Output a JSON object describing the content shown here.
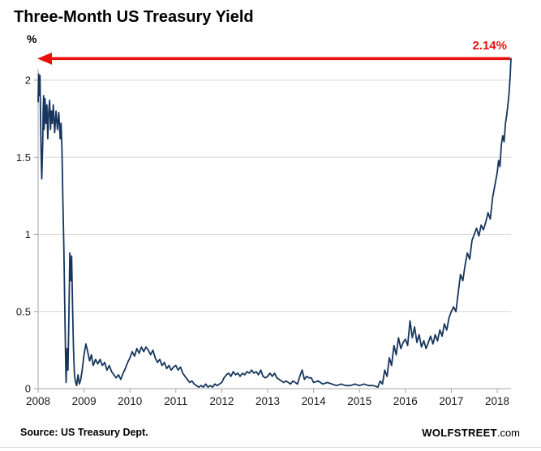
{
  "title": "Three-Month US Treasury Yield",
  "annotation": {
    "label": "2.14%",
    "value": 2.14
  },
  "footer": {
    "source": "Source: US Treasury Dept.",
    "brand_bold": "WOLFSTREET",
    "brand_suffix": ".com"
  },
  "colors": {
    "line": "#17365d",
    "accent_red": "#e8100e",
    "grid": "#d9d9d9",
    "axis": "#a6a6a6",
    "tick_text": "#1a1a1a"
  },
  "chart_data": {
    "type": "line",
    "title": "Three-Month US Treasury Yield",
    "xlabel": "",
    "ylabel": "%",
    "xlim": [
      2008,
      2018.3
    ],
    "ylim": [
      0,
      2.2
    ],
    "x_ticks": [
      2008,
      2009,
      2010,
      2011,
      2012,
      2013,
      2014,
      2015,
      2016,
      2017,
      2018
    ],
    "y_ticks": [
      0,
      0.5,
      1,
      1.5,
      2
    ],
    "grid": "horizontal",
    "legend": "none",
    "series": [
      {
        "name": "Three-Month US Treasury Yield",
        "points": [
          [
            2008.0,
            1.86
          ],
          [
            2008.01,
            2.04
          ],
          [
            2008.02,
            1.9
          ],
          [
            2008.03,
            1.97
          ],
          [
            2008.04,
            2.03
          ],
          [
            2008.05,
            1.83
          ],
          [
            2008.06,
            1.62
          ],
          [
            2008.07,
            1.45
          ],
          [
            2008.08,
            1.36
          ],
          [
            2008.1,
            1.6
          ],
          [
            2008.11,
            1.8
          ],
          [
            2008.12,
            1.9
          ],
          [
            2008.13,
            1.68
          ],
          [
            2008.15,
            1.88
          ],
          [
            2008.17,
            1.72
          ],
          [
            2008.19,
            1.84
          ],
          [
            2008.21,
            1.62
          ],
          [
            2008.23,
            1.79
          ],
          [
            2008.25,
            1.87
          ],
          [
            2008.27,
            1.68
          ],
          [
            2008.29,
            1.8
          ],
          [
            2008.31,
            1.72
          ],
          [
            2008.33,
            1.84
          ],
          [
            2008.36,
            1.66
          ],
          [
            2008.39,
            1.8
          ],
          [
            2008.42,
            1.68
          ],
          [
            2008.45,
            1.79
          ],
          [
            2008.48,
            1.62
          ],
          [
            2008.5,
            1.72
          ],
          [
            2008.52,
            1.55
          ],
          [
            2008.54,
            1.2
          ],
          [
            2008.56,
            0.92
          ],
          [
            2008.58,
            0.55
          ],
          [
            2008.6,
            0.16
          ],
          [
            2008.61,
            0.04
          ],
          [
            2008.63,
            0.26
          ],
          [
            2008.65,
            0.12
          ],
          [
            2008.67,
            0.45
          ],
          [
            2008.69,
            0.88
          ],
          [
            2008.71,
            0.7
          ],
          [
            2008.73,
            0.86
          ],
          [
            2008.75,
            0.52
          ],
          [
            2008.77,
            0.26
          ],
          [
            2008.79,
            0.1
          ],
          [
            2008.81,
            0.05
          ],
          [
            2008.84,
            0.02
          ],
          [
            2008.87,
            0.09
          ],
          [
            2008.9,
            0.03
          ],
          [
            2008.93,
            0.06
          ],
          [
            2008.96,
            0.12
          ],
          [
            2009.0,
            0.22
          ],
          [
            2009.04,
            0.29
          ],
          [
            2009.08,
            0.24
          ],
          [
            2009.12,
            0.18
          ],
          [
            2009.16,
            0.22
          ],
          [
            2009.2,
            0.15
          ],
          [
            2009.25,
            0.19
          ],
          [
            2009.3,
            0.16
          ],
          [
            2009.35,
            0.19
          ],
          [
            2009.4,
            0.15
          ],
          [
            2009.45,
            0.17
          ],
          [
            2009.5,
            0.12
          ],
          [
            2009.55,
            0.15
          ],
          [
            2009.6,
            0.11
          ],
          [
            2009.65,
            0.09
          ],
          [
            2009.7,
            0.07
          ],
          [
            2009.75,
            0.09
          ],
          [
            2009.8,
            0.06
          ],
          [
            2009.85,
            0.1
          ],
          [
            2009.9,
            0.13
          ],
          [
            2009.95,
            0.17
          ],
          [
            2010.0,
            0.2
          ],
          [
            2010.05,
            0.24
          ],
          [
            2010.1,
            0.21
          ],
          [
            2010.15,
            0.26
          ],
          [
            2010.2,
            0.23
          ],
          [
            2010.25,
            0.27
          ],
          [
            2010.3,
            0.24
          ],
          [
            2010.35,
            0.27
          ],
          [
            2010.4,
            0.25
          ],
          [
            2010.45,
            0.22
          ],
          [
            2010.5,
            0.25
          ],
          [
            2010.55,
            0.2
          ],
          [
            2010.6,
            0.17
          ],
          [
            2010.65,
            0.19
          ],
          [
            2010.7,
            0.15
          ],
          [
            2010.75,
            0.17
          ],
          [
            2010.8,
            0.13
          ],
          [
            2010.85,
            0.15
          ],
          [
            2010.9,
            0.12
          ],
          [
            2010.95,
            0.14
          ],
          [
            2011.0,
            0.15
          ],
          [
            2011.05,
            0.12
          ],
          [
            2011.1,
            0.14
          ],
          [
            2011.15,
            0.1
          ],
          [
            2011.2,
            0.08
          ],
          [
            2011.25,
            0.06
          ],
          [
            2011.3,
            0.04
          ],
          [
            2011.35,
            0.05
          ],
          [
            2011.4,
            0.03
          ],
          [
            2011.45,
            0.02
          ],
          [
            2011.5,
            0.01
          ],
          [
            2011.55,
            0.02
          ],
          [
            2011.6,
            0.01
          ],
          [
            2011.65,
            0.03
          ],
          [
            2011.7,
            0.01
          ],
          [
            2011.75,
            0.02
          ],
          [
            2011.8,
            0.01
          ],
          [
            2011.85,
            0.03
          ],
          [
            2011.9,
            0.02
          ],
          [
            2011.95,
            0.03
          ],
          [
            2012.0,
            0.04
          ],
          [
            2012.05,
            0.07
          ],
          [
            2012.1,
            0.09
          ],
          [
            2012.15,
            0.1
          ],
          [
            2012.2,
            0.08
          ],
          [
            2012.25,
            0.11
          ],
          [
            2012.3,
            0.09
          ],
          [
            2012.35,
            0.1
          ],
          [
            2012.4,
            0.08
          ],
          [
            2012.45,
            0.1
          ],
          [
            2012.5,
            0.09
          ],
          [
            2012.55,
            0.11
          ],
          [
            2012.6,
            0.1
          ],
          [
            2012.65,
            0.12
          ],
          [
            2012.7,
            0.1
          ],
          [
            2012.75,
            0.11
          ],
          [
            2012.8,
            0.09
          ],
          [
            2012.85,
            0.12
          ],
          [
            2012.9,
            0.08
          ],
          [
            2012.95,
            0.07
          ],
          [
            2013.0,
            0.08
          ],
          [
            2013.05,
            0.1
          ],
          [
            2013.1,
            0.08
          ],
          [
            2013.15,
            0.1
          ],
          [
            2013.2,
            0.07
          ],
          [
            2013.25,
            0.06
          ],
          [
            2013.3,
            0.05
          ],
          [
            2013.35,
            0.04
          ],
          [
            2013.4,
            0.05
          ],
          [
            2013.45,
            0.04
          ],
          [
            2013.5,
            0.03
          ],
          [
            2013.55,
            0.05
          ],
          [
            2013.6,
            0.04
          ],
          [
            2013.65,
            0.03
          ],
          [
            2013.7,
            0.08
          ],
          [
            2013.75,
            0.12
          ],
          [
            2013.8,
            0.06
          ],
          [
            2013.85,
            0.08
          ],
          [
            2013.9,
            0.07
          ],
          [
            2013.95,
            0.07
          ],
          [
            2014.0,
            0.04
          ],
          [
            2014.1,
            0.05
          ],
          [
            2014.2,
            0.03
          ],
          [
            2014.3,
            0.04
          ],
          [
            2014.4,
            0.03
          ],
          [
            2014.5,
            0.02
          ],
          [
            2014.6,
            0.03
          ],
          [
            2014.7,
            0.02
          ],
          [
            2014.8,
            0.02
          ],
          [
            2014.9,
            0.03
          ],
          [
            2015.0,
            0.02
          ],
          [
            2015.1,
            0.03
          ],
          [
            2015.2,
            0.02
          ],
          [
            2015.3,
            0.02
          ],
          [
            2015.4,
            0.01
          ],
          [
            2015.45,
            0.05
          ],
          [
            2015.5,
            0.03
          ],
          [
            2015.55,
            0.12
          ],
          [
            2015.6,
            0.08
          ],
          [
            2015.65,
            0.2
          ],
          [
            2015.7,
            0.15
          ],
          [
            2015.75,
            0.28
          ],
          [
            2015.8,
            0.22
          ],
          [
            2015.85,
            0.33
          ],
          [
            2015.9,
            0.26
          ],
          [
            2015.95,
            0.3
          ],
          [
            2016.0,
            0.32
          ],
          [
            2016.05,
            0.28
          ],
          [
            2016.1,
            0.44
          ],
          [
            2016.15,
            0.33
          ],
          [
            2016.2,
            0.4
          ],
          [
            2016.25,
            0.3
          ],
          [
            2016.3,
            0.35
          ],
          [
            2016.35,
            0.27
          ],
          [
            2016.4,
            0.31
          ],
          [
            2016.45,
            0.26
          ],
          [
            2016.5,
            0.3
          ],
          [
            2016.55,
            0.34
          ],
          [
            2016.6,
            0.29
          ],
          [
            2016.65,
            0.35
          ],
          [
            2016.7,
            0.31
          ],
          [
            2016.75,
            0.38
          ],
          [
            2016.8,
            0.34
          ],
          [
            2016.85,
            0.42
          ],
          [
            2016.9,
            0.38
          ],
          [
            2016.95,
            0.46
          ],
          [
            2017.0,
            0.5
          ],
          [
            2017.05,
            0.53
          ],
          [
            2017.1,
            0.5
          ],
          [
            2017.15,
            0.62
          ],
          [
            2017.2,
            0.74
          ],
          [
            2017.25,
            0.7
          ],
          [
            2017.3,
            0.8
          ],
          [
            2017.35,
            0.88
          ],
          [
            2017.4,
            0.84
          ],
          [
            2017.45,
            0.96
          ],
          [
            2017.5,
            1.0
          ],
          [
            2017.55,
            1.04
          ],
          [
            2017.6,
            0.99
          ],
          [
            2017.65,
            1.06
          ],
          [
            2017.7,
            1.03
          ],
          [
            2017.75,
            1.08
          ],
          [
            2017.8,
            1.14
          ],
          [
            2017.85,
            1.1
          ],
          [
            2017.9,
            1.24
          ],
          [
            2017.95,
            1.32
          ],
          [
            2018.0,
            1.4
          ],
          [
            2018.03,
            1.48
          ],
          [
            2018.06,
            1.44
          ],
          [
            2018.09,
            1.58
          ],
          [
            2018.12,
            1.64
          ],
          [
            2018.15,
            1.6
          ],
          [
            2018.18,
            1.72
          ],
          [
            2018.21,
            1.78
          ],
          [
            2018.24,
            1.86
          ],
          [
            2018.26,
            1.92
          ],
          [
            2018.28,
            2.02
          ],
          [
            2018.3,
            2.14
          ]
        ]
      }
    ]
  }
}
